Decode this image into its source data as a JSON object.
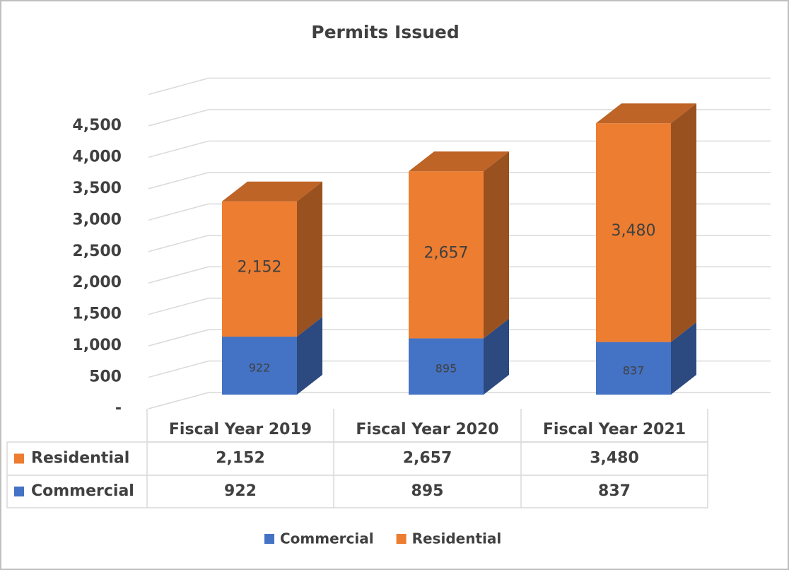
{
  "chart_data": {
    "type": "bar3d_stacked",
    "title": "Permits Issued",
    "categories": [
      "Fiscal Year 2019",
      "Fiscal Year 2020",
      "Fiscal Year 2021"
    ],
    "series": [
      {
        "name": "Commercial",
        "color": "#4472c4",
        "values": [
          922,
          895,
          837
        ]
      },
      {
        "name": "Residential",
        "color": "#ed7d31",
        "values": [
          2152,
          2657,
          3480
        ],
        "value_labels": [
          "2,152",
          "2,657",
          "3,480"
        ]
      }
    ],
    "ylim": [
      0,
      5000
    ],
    "yticks": [
      {
        "value": 0,
        "label": "-"
      },
      500,
      {
        "value": 1000,
        "label": "1,000"
      },
      {
        "value": 1500,
        "label": "1,500"
      },
      {
        "value": 2000,
        "label": "2,000"
      },
      {
        "value": 2500,
        "label": "2,500"
      },
      {
        "value": 3000,
        "label": "3,000"
      },
      {
        "value": 3500,
        "label": "3,500"
      },
      {
        "value": 4000,
        "label": "4,000"
      },
      {
        "value": 4500,
        "label": "4,500"
      }
    ],
    "grid": true,
    "legend": "bottom",
    "data_table": true
  }
}
